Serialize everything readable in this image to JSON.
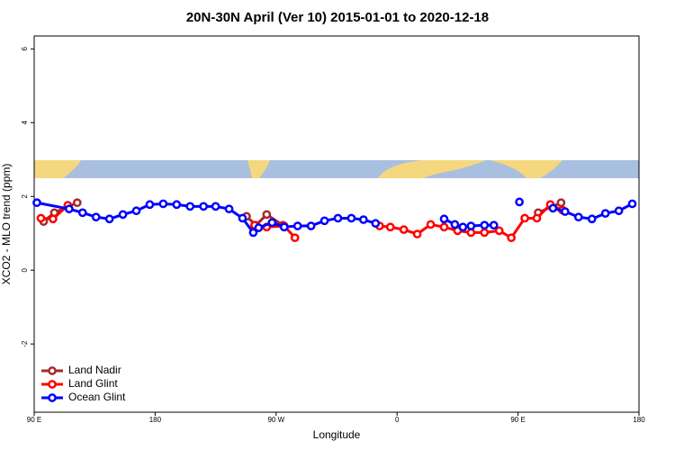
{
  "chart_data": {
    "type": "line",
    "title": "20N-30N April (Ver 10)   2015-01-01 to 2020-12-18",
    "xlabel": "Longitude",
    "ylabel": "XCO2 - MLO trend (ppm)",
    "xlim": [
      90,
      540
    ],
    "ylim": [
      -3.85,
      6.35
    ],
    "xticks": [
      {
        "value": 90,
        "label": "90 E"
      },
      180,
      {
        "value": 270,
        "label": "90 W"
      },
      {
        "value": 360,
        "label": "0"
      },
      {
        "value": 450,
        "label": "90 E"
      },
      {
        "value": 540,
        "label": "180"
      }
    ],
    "yticks": [
      -2,
      0,
      2,
      4,
      6
    ],
    "legend": "bottom-left",
    "series": [
      {
        "name": "Land Nadir",
        "color": "#a52a2a",
        "x": [
          97,
          105,
          122,
          null,
          248,
          255,
          263,
          275,
          null,
          465,
          482
        ],
        "values": [
          1.32,
          1.56,
          1.83,
          null,
          1.46,
          1.22,
          1.51,
          1.22,
          null,
          1.56,
          1.83
        ]
      },
      {
        "name": "Land Glint",
        "color": "#ff0000",
        "x": [
          95,
          104,
          115,
          null,
          254,
          263,
          276,
          284,
          null,
          347,
          355,
          365,
          375,
          385,
          395,
          405,
          415,
          425,
          436,
          445,
          455,
          464,
          474,
          483
        ],
        "values": [
          1.41,
          1.39,
          1.76,
          null,
          1.22,
          1.17,
          1.2,
          0.88,
          null,
          1.2,
          1.17,
          1.1,
          0.98,
          1.24,
          1.17,
          1.07,
          1.02,
          1.02,
          1.07,
          0.88,
          1.41,
          1.41,
          1.78,
          1.63
        ]
      },
      {
        "name": "Ocean Glint",
        "color": "#0000ff",
        "x": [
          92,
          116,
          126,
          136,
          146,
          156,
          166,
          176,
          186,
          196,
          206,
          216,
          225,
          235,
          245,
          253,
          257,
          267,
          276,
          286,
          296,
          306,
          316,
          326,
          335,
          344,
          null,
          395,
          403,
          409,
          415,
          425,
          432,
          null,
          451,
          null,
          476,
          485,
          495,
          505,
          515,
          525,
          535
        ],
        "values": [
          1.83,
          1.66,
          1.56,
          1.44,
          1.39,
          1.51,
          1.61,
          1.78,
          1.8,
          1.78,
          1.73,
          1.73,
          1.73,
          1.66,
          1.41,
          1.02,
          1.15,
          1.29,
          1.17,
          1.2,
          1.2,
          1.34,
          1.41,
          1.41,
          1.37,
          1.27,
          null,
          1.39,
          1.24,
          1.17,
          1.2,
          1.22,
          1.22,
          null,
          1.85,
          null,
          1.68,
          1.59,
          1.44,
          1.39,
          1.54,
          1.61,
          1.8
        ]
      }
    ]
  }
}
